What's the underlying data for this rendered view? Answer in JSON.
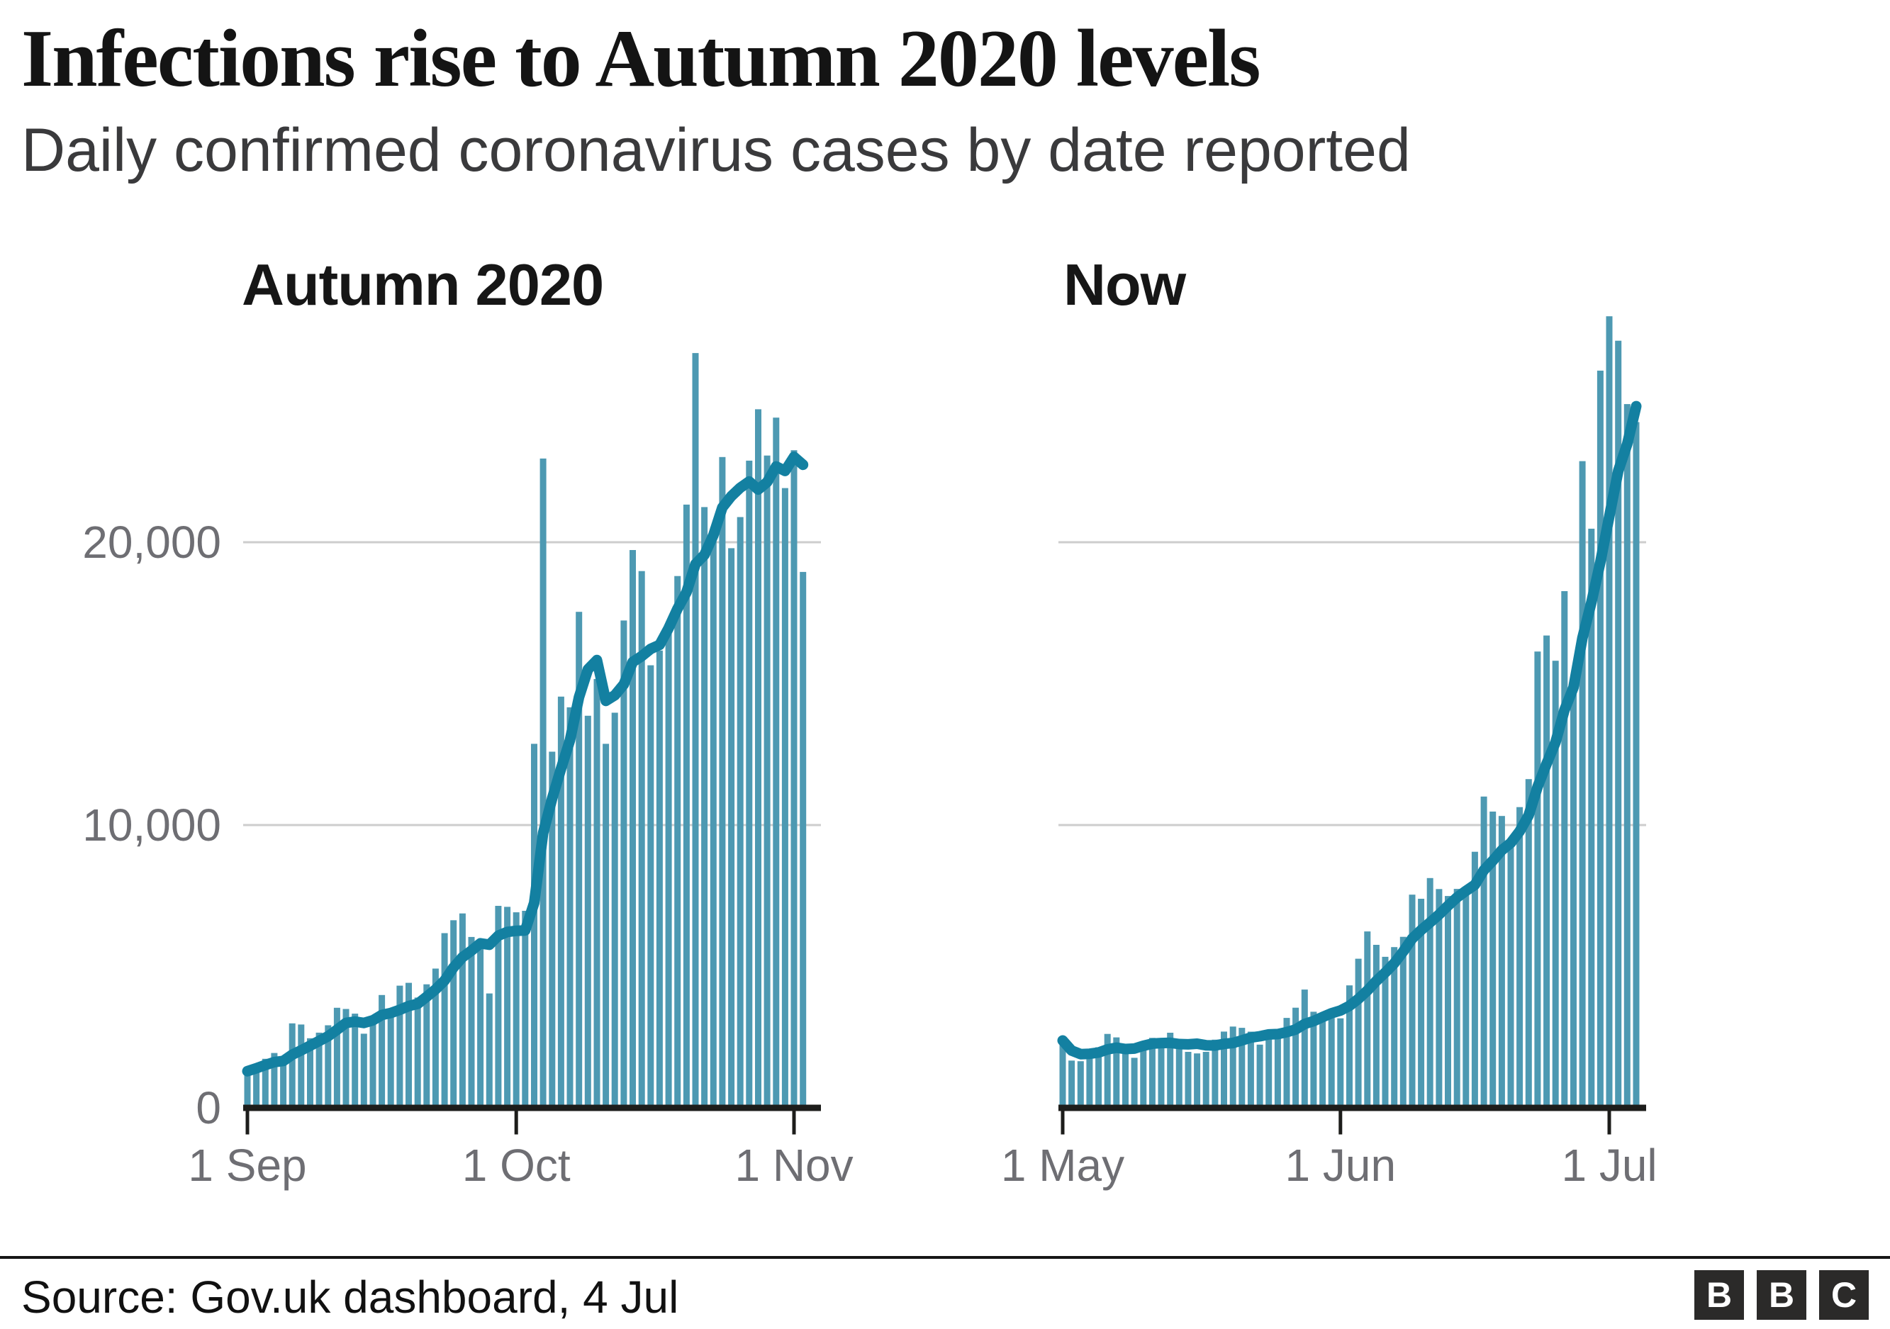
{
  "header": {
    "title": "Infections rise to Autumn 2020 levels",
    "subtitle": "Daily confirmed coronavirus cases by date reported"
  },
  "y_axis": {
    "labels": [
      "20,000",
      "10,000",
      "0"
    ],
    "values": [
      20000,
      10000,
      0
    ],
    "gridlines": [
      20000,
      10000
    ],
    "ylim": [
      0,
      28000
    ]
  },
  "chart_data": [
    {
      "type": "bar",
      "title": "Autumn 2020",
      "x_ticks": [
        {
          "label": "1 Sep",
          "day": 0
        },
        {
          "label": "1 Oct",
          "day": 30
        },
        {
          "label": "1 Nov",
          "day": 61
        }
      ],
      "rolling_average_window": 7,
      "values": [
        1295,
        1508,
        1735,
        1940,
        1813,
        2988,
        2948,
        2460,
        2659,
        2919,
        3539,
        3497,
        3330,
        2621,
        3105,
        3991,
        3395,
        4322,
        4422,
        3899,
        4368,
        4926,
        6178,
        6634,
        6874,
        6042,
        5693,
        4044,
        7143,
        7108,
        6914,
        6968,
        12872,
        22961,
        12594,
        14542,
        14162,
        17540,
        13864,
        15166,
        12872,
        13972,
        17234,
        19724,
        18980,
        15650,
        16171,
        16982,
        18804,
        21331,
        26688,
        21242,
        20530,
        23012,
        19790,
        20890,
        22885,
        24701,
        23065,
        24405,
        21915,
        23254,
        18950
      ]
    },
    {
      "type": "bar",
      "title": "Now",
      "x_ticks": [
        {
          "label": "1 May",
          "day": 0
        },
        {
          "label": "1 Jun",
          "day": 31
        },
        {
          "label": "1 Jul",
          "day": 61
        }
      ],
      "rolling_average_window": 7,
      "values": [
        2381,
        1671,
        1649,
        1946,
        2144,
        2613,
        2490,
        2047,
        1770,
        2357,
        2474,
        2284,
        2657,
        2193,
        1979,
        1926,
        1979,
        2412,
        2696,
        2874,
        2829,
        2694,
        2235,
        2439,
        2493,
        3180,
        3542,
        4182,
        3398,
        3240,
        3383,
        3165,
        4330,
        5274,
        6238,
        5765,
        5341,
        5683,
        6048,
        7540,
        7393,
        8125,
        7738,
        7490,
        7742,
        7673,
        9055,
        11007,
        10476,
        10321,
        9284,
        10633,
        11625,
        16135,
        16703,
        15810,
        18270,
        14876,
        22868,
        20479,
        26068,
        27989,
        27125,
        24885,
        24248
      ]
    }
  ],
  "colors": {
    "bar": "#4d99b2",
    "line": "#1380a1",
    "grid": "#cdcdcd",
    "axis": "#1d1d1b",
    "axis_label": "#6e6e73"
  },
  "footer": {
    "source": "Source: Gov.uk dashboard, 4 Jul",
    "logo_letters": [
      "B",
      "B",
      "C"
    ]
  }
}
